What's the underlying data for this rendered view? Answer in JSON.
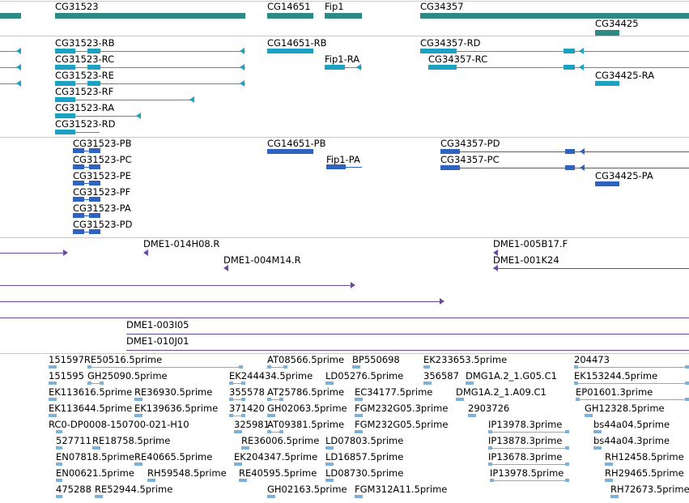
{
  "colors": {
    "gene": "#2e8b84",
    "mrna": "#1ba2c3",
    "protein": "#2e63c0",
    "clone": "#6a4aa0",
    "est": "#7db2d8",
    "divider": "#c8c8c8"
  },
  "genes": [
    "CG31523",
    "CG14651",
    "Fip1",
    "CG34357",
    "CG34425"
  ],
  "transcripts": [
    "CG31523-RB",
    "CG31523-RC",
    "CG31523-RE",
    "CG31523-RF",
    "CG31523-RA",
    "CG31523-RD",
    "CG14651-RB",
    "Fip1-RA",
    "CG34357-RD",
    "CG34357-RC",
    "CG34425-RA"
  ],
  "proteins": [
    "CG31523-PB",
    "CG31523-PC",
    "CG31523-PE",
    "CG31523-PF",
    "CG31523-PA",
    "CG31523-PD",
    "CG14651-PB",
    "Fip1-PA",
    "CG34357-PD",
    "CG34357-PC",
    "CG34425-PA"
  ],
  "clones": [
    "DME1-014H08.R",
    "DME1-004M14.R",
    "DME1-005B17.F",
    "DME1-001K24",
    "DME1-003I05",
    "DME1-010J01"
  ],
  "ests": [
    "151597RE50516.5prime",
    "AT08566.5prime",
    "BP550698",
    "EK233653.5prime",
    "204473",
    "151595",
    "GH25090.5prime",
    "EK244434.5prime",
    "LD05276.5prime",
    "356587",
    "DMG1A.2_1.G05.C1",
    "EK153244.5prime",
    "EK113616.5prime",
    "RE36930.5prime",
    "355578",
    "AT25786.5prime",
    "EC34177.5prime",
    "DMG1A.2_1.A09.C1",
    "EP01601.3prime",
    "EK113644.5prime",
    "EK139636.5prime",
    "371420",
    "GH02063.5prime",
    "FGM232G05.3prime",
    "2903726",
    "GH12328.5prime",
    "RC0-DP0008-150700-021-H10",
    "325981",
    "AT09381.5prime",
    "FGM232G05.5prime",
    "IP13978.3prime",
    "bs44a04.5prime",
    "527711",
    "RE18758.5prime",
    "RE36006.5prime",
    "LD07803.5prime",
    "IP13878.3prime",
    "bs44a04.3prime",
    "EN07818.5prime",
    "RE40665.5prime",
    "EK204347.5prime",
    "LD16857.5prime",
    "IP13678.3prime",
    "RH12458.5prime",
    "EN00621.5prime",
    "RH59548.5prime",
    "RE40595.5prime",
    "LD08730.5prime",
    "IP13978.5prime",
    "RH29465.5prime",
    "475288",
    "RE52944.5prime",
    "GH02163.5prime",
    "FGM312A11.5prime",
    "RH72673.5prime"
  ]
}
